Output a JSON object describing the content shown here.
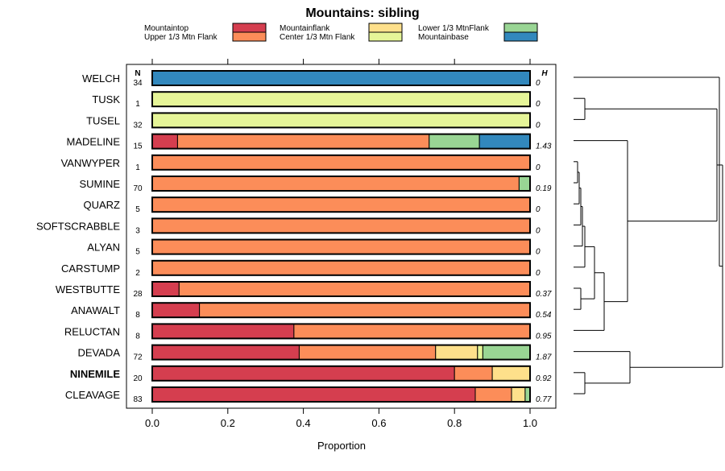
{
  "chart_data": {
    "type": "bar",
    "orientation": "horizontal",
    "stacked": true,
    "title": "Mountains: sibling",
    "xlabel": "Proportion",
    "ylabel": "",
    "xlim": [
      0,
      1
    ],
    "xticks": [
      "0.0",
      "0.2",
      "0.4",
      "0.6",
      "0.8",
      "1.0"
    ],
    "n_header": "N",
    "h_header": "H",
    "legend": [
      {
        "name": "Mountaintop",
        "color": "#d53e4f"
      },
      {
        "name": "Upper 1/3 Mtn Flank",
        "color": "#fc8d59"
      },
      {
        "name": "Mountainflank",
        "color": "#fee08b"
      },
      {
        "name": "Center 1/3 Mtn Flank",
        "color": "#e6f598"
      },
      {
        "name": "Lower 1/3 MtnFlank",
        "color": "#99d594"
      },
      {
        "name": "Mountainbase",
        "color": "#3288bd"
      }
    ],
    "categories": [
      {
        "label": "WELCH",
        "n": "34",
        "h": "0",
        "bold": false,
        "segments": [
          {
            "cat": "Mountainbase",
            "value": 1.0
          }
        ]
      },
      {
        "label": "TUSK",
        "n": "1",
        "h": "0",
        "bold": false,
        "segments": [
          {
            "cat": "Center 1/3 Mtn Flank",
            "value": 1.0
          }
        ]
      },
      {
        "label": "TUSEL",
        "n": "32",
        "h": "0",
        "bold": false,
        "segments": [
          {
            "cat": "Center 1/3 Mtn Flank",
            "value": 1.0
          }
        ]
      },
      {
        "label": "MADELINE",
        "n": "15",
        "h": "1.43",
        "bold": false,
        "segments": [
          {
            "cat": "Mountaintop",
            "value": 0.067
          },
          {
            "cat": "Upper 1/3 Mtn Flank",
            "value": 0.666
          },
          {
            "cat": "Lower 1/3 MtnFlank",
            "value": 0.133
          },
          {
            "cat": "Mountainbase",
            "value": 0.134
          }
        ]
      },
      {
        "label": "VANWYPER",
        "n": "1",
        "h": "0",
        "bold": false,
        "segments": [
          {
            "cat": "Upper 1/3 Mtn Flank",
            "value": 1.0
          }
        ]
      },
      {
        "label": "SUMINE",
        "n": "70",
        "h": "0.19",
        "bold": false,
        "segments": [
          {
            "cat": "Upper 1/3 Mtn Flank",
            "value": 0.971
          },
          {
            "cat": "Lower 1/3 MtnFlank",
            "value": 0.029
          }
        ]
      },
      {
        "label": "QUARZ",
        "n": "5",
        "h": "0",
        "bold": false,
        "segments": [
          {
            "cat": "Upper 1/3 Mtn Flank",
            "value": 1.0
          }
        ]
      },
      {
        "label": "SOFTSCRABBLE",
        "n": "3",
        "h": "0",
        "bold": false,
        "segments": [
          {
            "cat": "Upper 1/3 Mtn Flank",
            "value": 1.0
          }
        ]
      },
      {
        "label": "ALYAN",
        "n": "5",
        "h": "0",
        "bold": false,
        "segments": [
          {
            "cat": "Upper 1/3 Mtn Flank",
            "value": 1.0
          }
        ]
      },
      {
        "label": "CARSTUMP",
        "n": "2",
        "h": "0",
        "bold": false,
        "segments": [
          {
            "cat": "Upper 1/3 Mtn Flank",
            "value": 1.0
          }
        ]
      },
      {
        "label": "WESTBUTTE",
        "n": "28",
        "h": "0.37",
        "bold": false,
        "segments": [
          {
            "cat": "Mountaintop",
            "value": 0.071
          },
          {
            "cat": "Upper 1/3 Mtn Flank",
            "value": 0.929
          }
        ]
      },
      {
        "label": "ANAWALT",
        "n": "8",
        "h": "0.54",
        "bold": false,
        "segments": [
          {
            "cat": "Mountaintop",
            "value": 0.125
          },
          {
            "cat": "Upper 1/3 Mtn Flank",
            "value": 0.875
          }
        ]
      },
      {
        "label": "RELUCTAN",
        "n": "8",
        "h": "0.95",
        "bold": false,
        "segments": [
          {
            "cat": "Mountaintop",
            "value": 0.375
          },
          {
            "cat": "Upper 1/3 Mtn Flank",
            "value": 0.625
          }
        ]
      },
      {
        "label": "DEVADA",
        "n": "72",
        "h": "1.87",
        "bold": false,
        "segments": [
          {
            "cat": "Mountaintop",
            "value": 0.389
          },
          {
            "cat": "Upper 1/3 Mtn Flank",
            "value": 0.361
          },
          {
            "cat": "Mountainflank",
            "value": 0.111
          },
          {
            "cat": "Center 1/3 Mtn Flank",
            "value": 0.014
          },
          {
            "cat": "Lower 1/3 MtnFlank",
            "value": 0.125
          }
        ]
      },
      {
        "label": "NINEMILE",
        "n": "20",
        "h": "0.92",
        "bold": true,
        "segments": [
          {
            "cat": "Mountaintop",
            "value": 0.8
          },
          {
            "cat": "Upper 1/3 Mtn Flank",
            "value": 0.1
          },
          {
            "cat": "Mountainflank",
            "value": 0.1
          }
        ]
      },
      {
        "label": "CLEAVAGE",
        "n": "83",
        "h": "0.77",
        "bold": false,
        "segments": [
          {
            "cat": "Mountaintop",
            "value": 0.855
          },
          {
            "cat": "Upper 1/3 Mtn Flank",
            "value": 0.096
          },
          {
            "cat": "Mountainflank",
            "value": 0.036
          },
          {
            "cat": "Lower 1/3 MtnFlank",
            "value": 0.013
          }
        ]
      }
    ]
  }
}
